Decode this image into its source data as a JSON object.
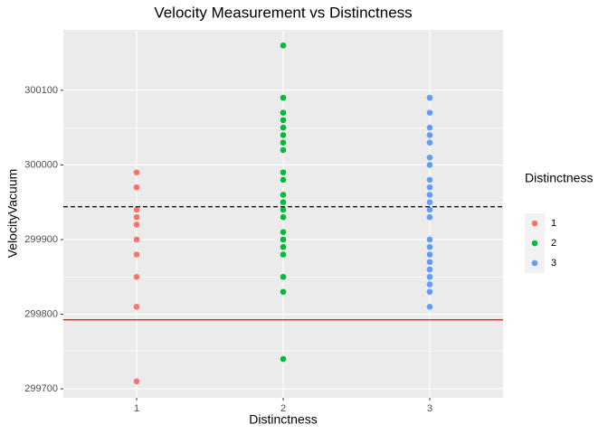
{
  "chart_data": {
    "type": "scatter",
    "title": "Velocity Measurement vs Distinctness",
    "x_label": "Distinctness",
    "y_label": "VelocityVacuum",
    "legend_title": "Distinctness",
    "categories": [
      "1",
      "2",
      "3"
    ],
    "series": [
      {
        "name": "1",
        "color": "#F8766D",
        "values": [
          299990,
          299970,
          299970,
          299940,
          299930,
          299920,
          299900,
          299880,
          299850,
          299810,
          299710
        ]
      },
      {
        "name": "2",
        "color": "#00BA38",
        "values": [
          300160,
          300090,
          300070,
          300060,
          300050,
          300040,
          300030,
          300020,
          299990,
          299980,
          299960,
          299950,
          299940,
          299930,
          299910,
          299900,
          299890,
          299880,
          299850,
          299830,
          299740
        ]
      },
      {
        "name": "3",
        "color": "#619CFF",
        "values": [
          300090,
          300070,
          300050,
          300040,
          300030,
          300010,
          300000,
          299980,
          299970,
          299960,
          299950,
          299940,
          299930,
          299900,
          299890,
          299880,
          299870,
          299860,
          299850,
          299840,
          299830,
          299810
        ]
      }
    ],
    "reference_lines": [
      {
        "value": 299944,
        "color": "#000000",
        "style": "dashed"
      },
      {
        "value": 299792.458,
        "color": "#FF0000",
        "style": "solid"
      }
    ],
    "ylim": [
      299688,
      300181
    ],
    "yticks": [
      299700,
      299800,
      299900,
      300000,
      300100
    ],
    "grid": true,
    "legend_position": "right"
  }
}
